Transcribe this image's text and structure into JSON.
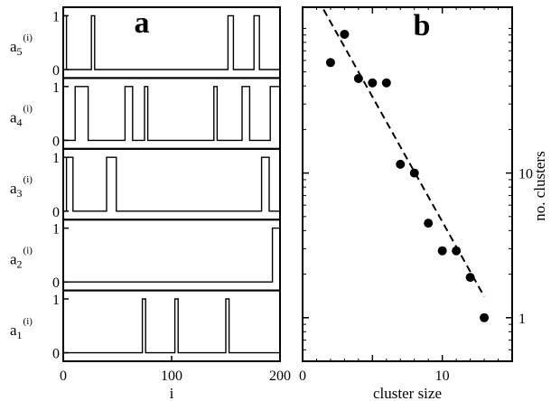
{
  "chart_data": [
    {
      "type": "line",
      "panel_label": "a",
      "xlabel": "i",
      "xlim": [
        0,
        200
      ],
      "x_ticks": [
        0,
        100,
        200
      ],
      "x_tick_labels": [
        "0",
        "100",
        "200"
      ],
      "y_ticks": [
        0,
        1
      ],
      "y_tick_labels": [
        "0",
        "1"
      ],
      "series": [
        {
          "label_base": "a",
          "label_sub": "5",
          "label_sup": "(i)",
          "pulses": [
            [
              0,
              3
            ],
            [
              26,
              29
            ],
            [
              152,
              157
            ],
            [
              176,
              181
            ]
          ]
        },
        {
          "label_base": "a",
          "label_sub": "4",
          "label_sup": "(i)",
          "pulses": [
            [
              11,
              23
            ],
            [
              57,
              64
            ],
            [
              75,
              78
            ],
            [
              139,
              142
            ],
            [
              165,
              172
            ],
            [
              191,
              200
            ]
          ]
        },
        {
          "label_base": "a",
          "label_sub": "3",
          "label_sup": "(i)",
          "pulses": [
            [
              3,
              9
            ],
            [
              40,
              49
            ],
            [
              183,
              190
            ]
          ]
        },
        {
          "label_base": "a",
          "label_sub": "2",
          "label_sup": "(i)",
          "pulses": [
            [
              193,
              200
            ]
          ]
        },
        {
          "label_base": "a",
          "label_sub": "1",
          "label_sup": "(i)",
          "pulses": [
            [
              73,
              76
            ],
            [
              103,
              106
            ],
            [
              150,
              153
            ]
          ]
        }
      ]
    },
    {
      "type": "scatter",
      "panel_label": "b",
      "xlabel": "cluster size",
      "ylabel": "no. clusters",
      "yscale": "log",
      "xlim": [
        0,
        15
      ],
      "ylim": [
        0.5,
        140
      ],
      "x_ticks": [
        0,
        5,
        10,
        15
      ],
      "x_tick_labels": [
        "0",
        "",
        "10",
        ""
      ],
      "y_ticks": [
        1,
        10
      ],
      "y_tick_labels": [
        "1",
        "10"
      ],
      "points": [
        {
          "x": 2,
          "y": 58
        },
        {
          "x": 3,
          "y": 91
        },
        {
          "x": 4,
          "y": 45
        },
        {
          "x": 5,
          "y": 42
        },
        {
          "x": 6,
          "y": 42
        },
        {
          "x": 7,
          "y": 11.5
        },
        {
          "x": 8,
          "y": 10
        },
        {
          "x": 9,
          "y": 4.5
        },
        {
          "x": 10,
          "y": 2.9
        },
        {
          "x": 11,
          "y": 2.9
        },
        {
          "x": 12,
          "y": 1.9
        },
        {
          "x": 13,
          "y": 1
        }
      ],
      "fit_line": {
        "x": [
          1.5,
          13
        ],
        "y": [
          135,
          1.4
        ],
        "style": "dashed"
      }
    }
  ]
}
